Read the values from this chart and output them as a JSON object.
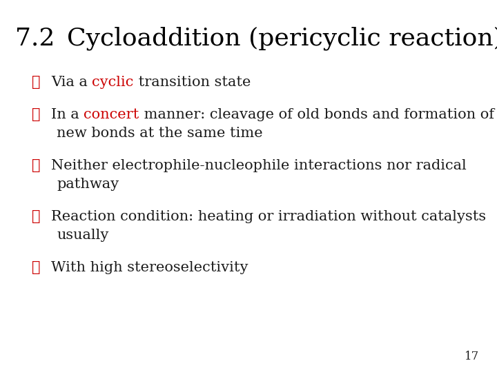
{
  "background_color": "#ffffff",
  "title_number": "7.2",
  "title_rest": "  Cycloaddition (pericyclic reaction)",
  "title_color": "#000000",
  "title_fontsize": 26,
  "bullet_symbol": "✔",
  "bullet_color": "#cc0000",
  "text_color": "#1a1a1a",
  "red_color": "#cc0000",
  "bullet_fontsize": 15,
  "page_number": "17",
  "page_fontsize": 12,
  "bullets": [
    {
      "line1": [
        {
          "text": "Via a ",
          "color": "#1a1a1a"
        },
        {
          "text": "cyclic",
          "color": "#cc0000"
        },
        {
          "text": " transition state",
          "color": "#1a1a1a"
        }
      ],
      "line2": null
    },
    {
      "line1": [
        {
          "text": "In a ",
          "color": "#1a1a1a"
        },
        {
          "text": "concert",
          "color": "#cc0000"
        },
        {
          "text": " manner: cleavage of old bonds and formation of",
          "color": "#1a1a1a"
        }
      ],
      "line2": [
        {
          "text": "new bonds at the same time",
          "color": "#1a1a1a"
        }
      ]
    },
    {
      "line1": [
        {
          "text": "Neither electrophile-nucleophile interactions nor radical",
          "color": "#1a1a1a"
        }
      ],
      "line2": [
        {
          "text": "pathway",
          "color": "#1a1a1a"
        }
      ]
    },
    {
      "line1": [
        {
          "text": "Reaction condition: heating or irradiation without catalysts",
          "color": "#1a1a1a"
        }
      ],
      "line2": [
        {
          "text": "usually",
          "color": "#1a1a1a"
        }
      ]
    },
    {
      "line1": [
        {
          "text": "With high stereoselectivity",
          "color": "#1a1a1a"
        }
      ],
      "line2": null
    }
  ]
}
